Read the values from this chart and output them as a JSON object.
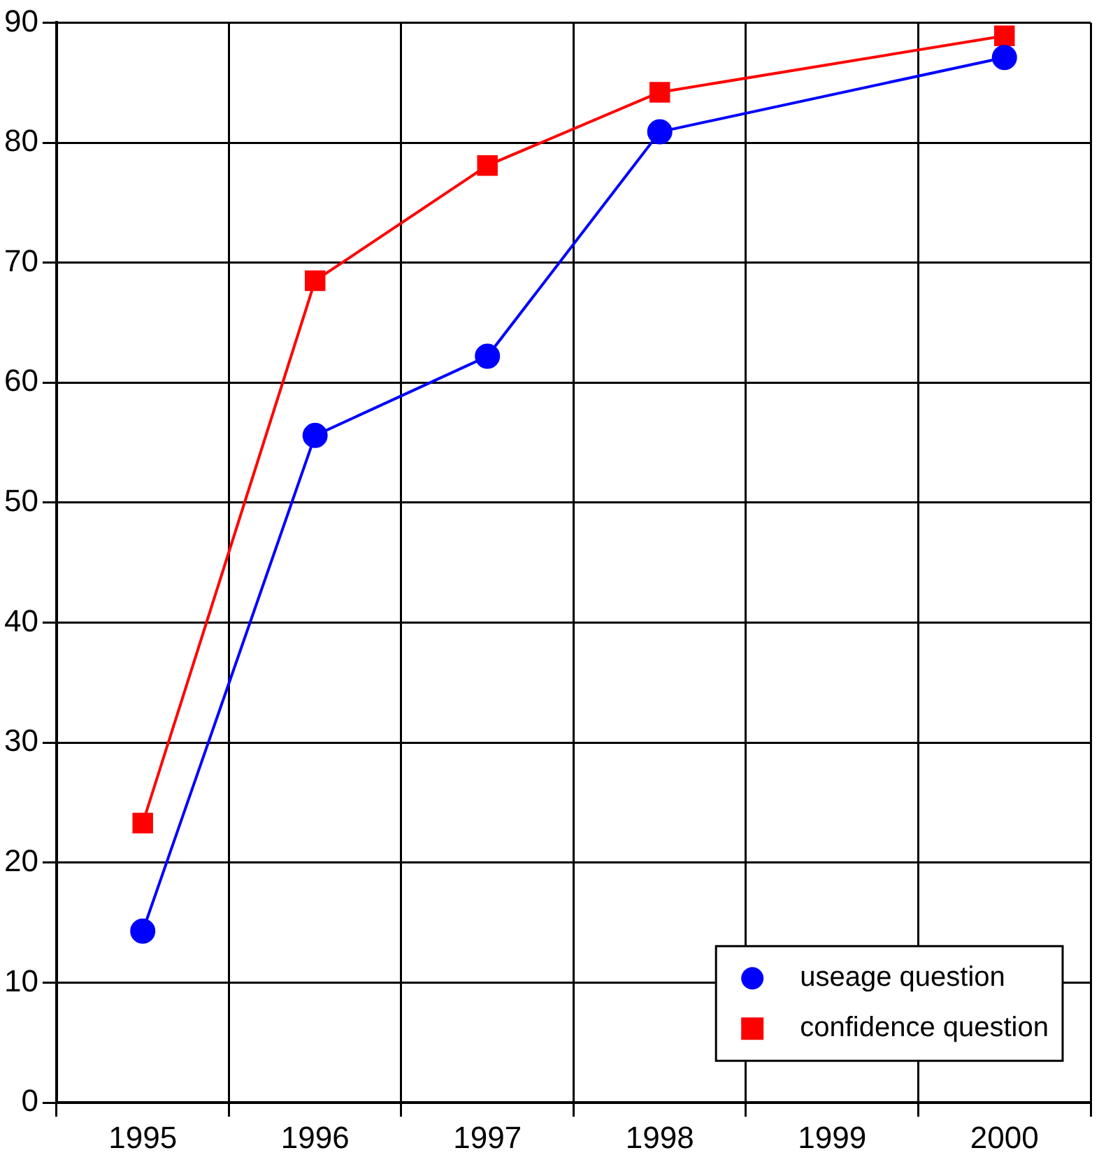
{
  "chart_data": {
    "type": "line",
    "categories": [
      "1995",
      "1996",
      "1997",
      "1998",
      "1999",
      "2000"
    ],
    "series": [
      {
        "name": "useage question",
        "color": "#0000ff",
        "marker": "circle",
        "values": [
          14.3,
          55.6,
          62.2,
          80.9,
          null,
          87.1
        ]
      },
      {
        "name": "confidence question",
        "color": "#ff0000",
        "marker": "square",
        "values": [
          23.3,
          68.5,
          78.1,
          84.2,
          null,
          88.9
        ]
      }
    ],
    "ylim": [
      0,
      90
    ],
    "yticks": [
      0,
      10,
      20,
      30,
      40,
      50,
      60,
      70,
      80,
      90
    ],
    "grid": true,
    "legend": "bottom right"
  }
}
